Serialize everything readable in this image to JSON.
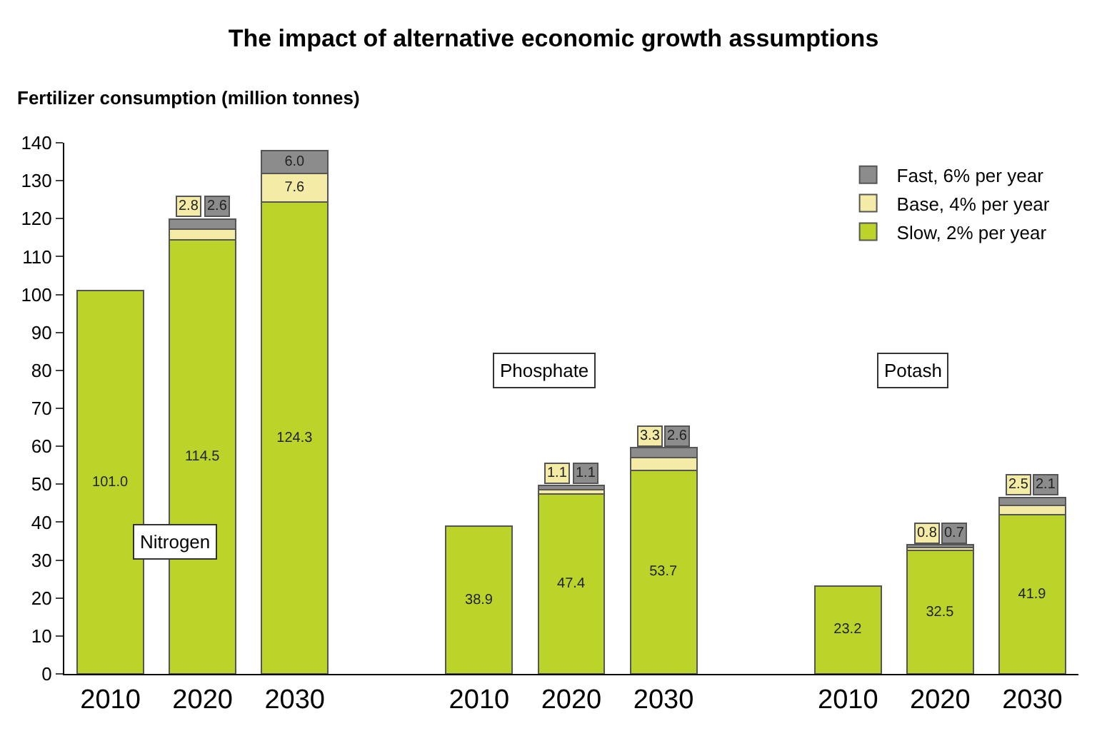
{
  "chart_data": {
    "type": "bar",
    "title": "The impact of alternative economic growth assumptions",
    "ylabel": "Fertilizer consumption (million tonnes)",
    "categories": [
      "2010",
      "2020",
      "2030",
      null,
      "2010",
      "2020",
      "2030",
      null,
      "2010",
      "2020",
      "2030"
    ],
    "series": [
      {
        "name": "Slow, 2% per year",
        "color": "#bcd42a",
        "values": [
          101.0,
          114.5,
          124.3,
          null,
          38.9,
          47.4,
          53.7,
          null,
          23.2,
          32.5,
          41.9
        ],
        "value_labels": [
          "101.0",
          "114.5",
          "124.3",
          null,
          "38.9",
          "47.4",
          "53.7",
          null,
          "23.2",
          "32.5",
          "41.9"
        ]
      },
      {
        "name": "Base, 4% per year",
        "color": "#f3eba6",
        "values": [
          null,
          2.8,
          7.6,
          null,
          null,
          1.1,
          3.3,
          null,
          null,
          0.8,
          2.5
        ],
        "value_labels": [
          null,
          "2.8",
          "7.6",
          null,
          null,
          "1.1",
          "3.3",
          null,
          null,
          "0.8",
          "2.5"
        ]
      },
      {
        "name": "Fast, 6% per year",
        "color": "#8c8c8c",
        "values": [
          null,
          2.6,
          6.0,
          null,
          null,
          1.1,
          2.6,
          null,
          null,
          0.7,
          2.1
        ],
        "value_labels": [
          null,
          "2.6",
          "6.0",
          null,
          null,
          "1.1",
          "2.6",
          null,
          null,
          "0.7",
          "2.1"
        ]
      }
    ],
    "annotations": [
      "Nitrogen",
      "Phosphate",
      "Potash"
    ],
    "stacked": true,
    "legend": "top right",
    "ylim": [
      0,
      140
    ],
    "yticks": [
      0,
      10,
      20,
      30,
      40,
      50,
      60,
      70,
      80,
      90,
      100,
      110,
      120,
      130,
      140
    ]
  }
}
